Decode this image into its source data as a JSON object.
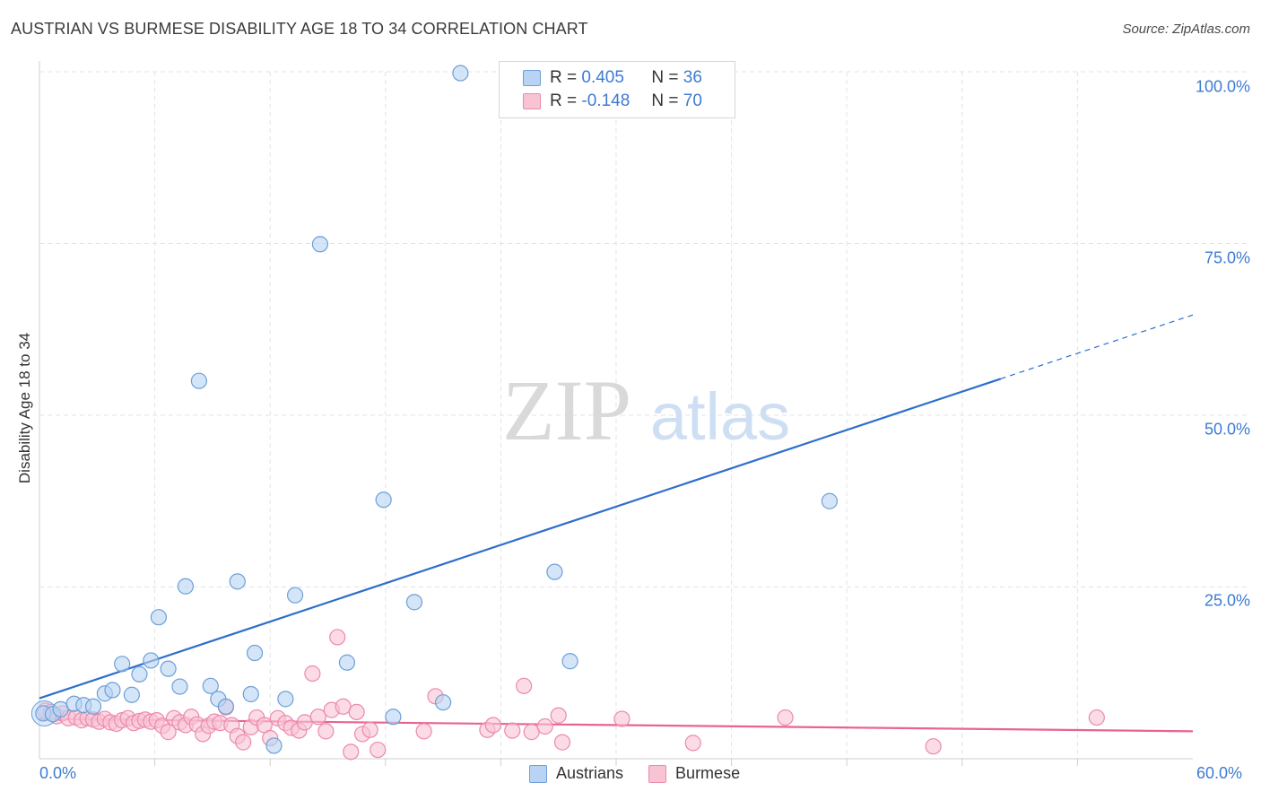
{
  "title": "AUSTRIAN VS BURMESE DISABILITY AGE 18 TO 34 CORRELATION CHART",
  "source": "Source: ZipAtlas.com",
  "watermark": {
    "zip": "ZIP",
    "atlas": "atlas"
  },
  "stats": {
    "austrians": {
      "r_label": "R =",
      "r_value": "0.405",
      "n_label": "N =",
      "n_value": "36"
    },
    "burmese": {
      "r_label": "R =",
      "r_value": "-0.148",
      "n_label": "N =",
      "n_value": "70"
    }
  },
  "legend": {
    "austrians": "Austrians",
    "burmese": "Burmese"
  },
  "colors": {
    "austrians_fill": "#b8d3f3",
    "austrians_stroke": "#6d9fd8",
    "austrians_line": "#2d6fcb",
    "burmese_fill": "#f8c3d3",
    "burmese_stroke": "#ec8aab",
    "burmese_line": "#e8648e",
    "tick_text": "#3d7bd2",
    "grid": "#e3e3e3"
  },
  "chart_data": {
    "type": "scatter",
    "title": "AUSTRIAN VS BURMESE DISABILITY AGE 18 TO 34 CORRELATION CHART",
    "xlabel": "",
    "ylabel": "Disability Age 18 to 34",
    "xlim": [
      0,
      60
    ],
    "ylim": [
      0,
      100
    ],
    "x_tick_labels": [
      "0.0%",
      "60.0%"
    ],
    "y_ticks": [
      25,
      50,
      75,
      100
    ],
    "y_tick_labels": [
      "25.0%",
      "50.0%",
      "75.0%",
      "100.0%"
    ],
    "grid": true,
    "series": [
      {
        "name": "Austrians",
        "r": 0.405,
        "n": 36,
        "trend": {
          "x0": 0,
          "y0": 8.8,
          "x1": 50,
          "y1": 55.3,
          "x_dash_end": 60,
          "y_dash_end": 64.6
        },
        "points": [
          [
            0.2,
            6.6
          ],
          [
            0.7,
            6.5
          ],
          [
            1.1,
            7.2
          ],
          [
            1.8,
            8.0
          ],
          [
            2.3,
            7.8
          ],
          [
            2.8,
            7.6
          ],
          [
            3.4,
            9.5
          ],
          [
            3.8,
            10.0
          ],
          [
            4.3,
            13.8
          ],
          [
            4.8,
            9.3
          ],
          [
            5.2,
            12.3
          ],
          [
            5.8,
            14.3
          ],
          [
            6.2,
            20.6
          ],
          [
            6.7,
            13.1
          ],
          [
            7.3,
            10.5
          ],
          [
            7.6,
            25.1
          ],
          [
            8.3,
            55.0
          ],
          [
            8.9,
            10.6
          ],
          [
            9.3,
            8.7
          ],
          [
            9.7,
            7.6
          ],
          [
            10.3,
            25.8
          ],
          [
            11.0,
            9.4
          ],
          [
            11.2,
            15.4
          ],
          [
            12.2,
            1.9
          ],
          [
            12.8,
            8.7
          ],
          [
            13.3,
            23.8
          ],
          [
            14.6,
            74.9
          ],
          [
            16.0,
            14.0
          ],
          [
            17.9,
            37.7
          ],
          [
            18.4,
            6.1
          ],
          [
            19.5,
            22.8
          ],
          [
            21.0,
            8.2
          ],
          [
            21.9,
            99.8
          ],
          [
            26.8,
            27.2
          ],
          [
            27.6,
            14.2
          ],
          [
            41.1,
            37.5
          ]
        ]
      },
      {
        "name": "Burmese",
        "r": -0.148,
        "n": 70,
        "trend": {
          "x0": 0,
          "y0": 5.8,
          "x1": 60,
          "y1": 4.0
        },
        "points": [
          [
            0.3,
            7.0
          ],
          [
            0.6,
            6.8
          ],
          [
            0.9,
            6.2
          ],
          [
            1.2,
            6.6
          ],
          [
            1.5,
            5.9
          ],
          [
            1.9,
            6.0
          ],
          [
            2.2,
            5.6
          ],
          [
            2.5,
            5.9
          ],
          [
            2.8,
            5.7
          ],
          [
            3.1,
            5.4
          ],
          [
            3.4,
            5.8
          ],
          [
            3.7,
            5.3
          ],
          [
            4.0,
            5.1
          ],
          [
            4.3,
            5.6
          ],
          [
            4.6,
            5.9
          ],
          [
            4.9,
            5.2
          ],
          [
            5.2,
            5.5
          ],
          [
            5.5,
            5.7
          ],
          [
            5.8,
            5.4
          ],
          [
            6.1,
            5.6
          ],
          [
            6.4,
            4.8
          ],
          [
            6.7,
            3.9
          ],
          [
            7.0,
            5.9
          ],
          [
            7.3,
            5.3
          ],
          [
            7.6,
            4.9
          ],
          [
            7.9,
            6.1
          ],
          [
            8.2,
            5.0
          ],
          [
            8.5,
            3.6
          ],
          [
            8.8,
            4.8
          ],
          [
            9.1,
            5.4
          ],
          [
            9.4,
            5.2
          ],
          [
            9.7,
            7.5
          ],
          [
            10.0,
            4.9
          ],
          [
            10.3,
            3.3
          ],
          [
            10.6,
            2.4
          ],
          [
            11.0,
            4.6
          ],
          [
            11.3,
            6.0
          ],
          [
            11.7,
            4.9
          ],
          [
            12.0,
            3.0
          ],
          [
            12.4,
            5.9
          ],
          [
            12.8,
            5.2
          ],
          [
            13.1,
            4.5
          ],
          [
            13.5,
            4.1
          ],
          [
            13.8,
            5.3
          ],
          [
            14.2,
            12.4
          ],
          [
            14.5,
            6.1
          ],
          [
            14.9,
            4.0
          ],
          [
            15.2,
            7.1
          ],
          [
            15.5,
            17.7
          ],
          [
            15.8,
            7.6
          ],
          [
            16.2,
            1.0
          ],
          [
            16.5,
            6.8
          ],
          [
            16.8,
            3.6
          ],
          [
            17.2,
            4.2
          ],
          [
            17.6,
            1.3
          ],
          [
            20.0,
            4.0
          ],
          [
            20.6,
            9.1
          ],
          [
            23.3,
            4.2
          ],
          [
            23.6,
            4.9
          ],
          [
            24.6,
            4.1
          ],
          [
            25.2,
            10.6
          ],
          [
            25.6,
            3.9
          ],
          [
            26.3,
            4.7
          ],
          [
            27.0,
            6.3
          ],
          [
            27.2,
            2.4
          ],
          [
            30.3,
            5.8
          ],
          [
            34.0,
            2.3
          ],
          [
            38.8,
            6.0
          ],
          [
            46.5,
            1.8
          ],
          [
            55.0,
            6.0
          ]
        ]
      }
    ]
  }
}
